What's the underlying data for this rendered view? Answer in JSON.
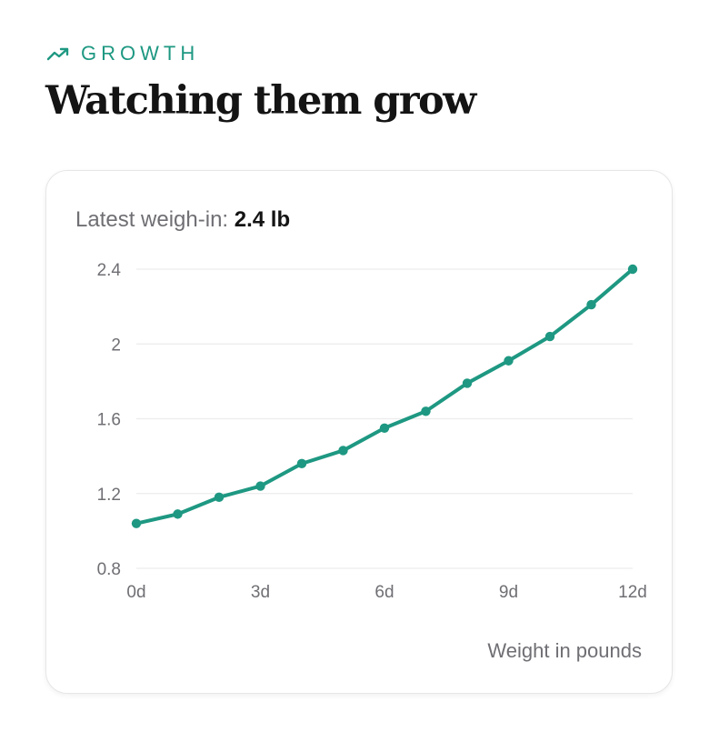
{
  "eyebrow": {
    "label": "GROWTH",
    "icon": "trend-up-icon",
    "color": "#1e9882"
  },
  "title": "Watching them grow",
  "latest": {
    "label": "Latest weigh-in:",
    "value": "2.4 lb"
  },
  "caption": "Weight in pounds",
  "chart_data": {
    "type": "line",
    "title": "",
    "xlabel": "",
    "ylabel": "",
    "x": [
      0,
      1,
      2,
      3,
      4,
      5,
      6,
      7,
      8,
      9,
      10,
      11,
      12
    ],
    "series": [
      {
        "values": [
          1.04,
          1.09,
          1.18,
          1.24,
          1.36,
          1.43,
          1.55,
          1.64,
          1.79,
          1.91,
          2.04,
          2.21,
          2.4
        ]
      }
    ],
    "xlim": [
      0,
      12
    ],
    "ylim": [
      0.8,
      2.4
    ],
    "x_ticks": [
      0,
      3,
      6,
      9,
      12
    ],
    "x_tick_labels": [
      "0d",
      "3d",
      "6d",
      "9d",
      "12d"
    ],
    "y_ticks": [
      0.8,
      1.2,
      1.6,
      2,
      2.4
    ],
    "y_tick_labels": [
      "0.8",
      "1.2",
      "1.6",
      "2",
      "2.4"
    ],
    "grid": true,
    "line_color": "#1e9882"
  }
}
